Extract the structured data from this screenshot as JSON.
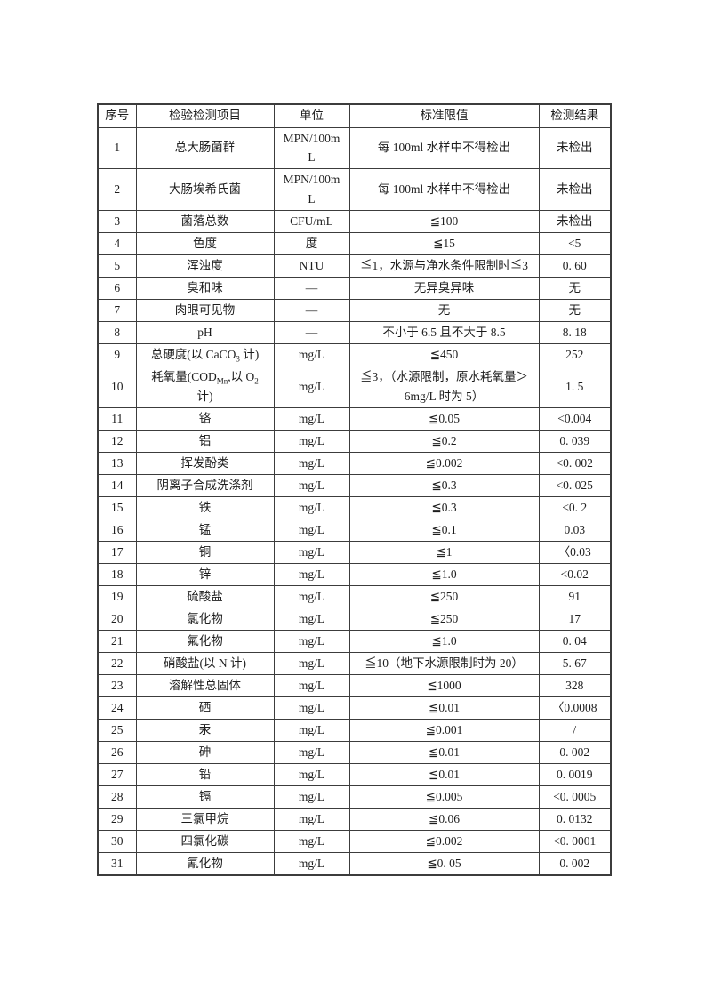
{
  "colors": {
    "page_background": "#ffffff",
    "border": "#3c3c3c",
    "text": "#1d1d1d"
  },
  "table": {
    "headers": [
      "序号",
      "检验检测项目",
      "单位",
      "标准限值",
      "检测结果"
    ],
    "rows": [
      {
        "no": "1",
        "item": "总大肠菌群",
        "unit": "MPN/100mL",
        "unit_html": "MPN/100m<br>L",
        "limit": "每 100ml 水样中不得检出",
        "result": "未检出",
        "tall": true
      },
      {
        "no": "2",
        "item": "大肠埃希氏菌",
        "unit": "MPN/100mL",
        "unit_html": "MPN/100m<br>L",
        "limit": "每 100ml 水样中不得检出",
        "result": "未检出",
        "tall": true
      },
      {
        "no": "3",
        "item": "菌落总数",
        "unit": "CFU/mL",
        "limit": "≦100",
        "result": "未检出"
      },
      {
        "no": "4",
        "item": "色度",
        "unit": "度",
        "limit": "≦15",
        "result": "<5"
      },
      {
        "no": "5",
        "item": "浑浊度",
        "unit": "NTU",
        "limit": "≦1，水源与净水条件限制时≦3",
        "result": "0. 60"
      },
      {
        "no": "6",
        "item": "臭和味",
        "unit": "—",
        "limit": "无异臭异味",
        "result": "无"
      },
      {
        "no": "7",
        "item": "肉眼可见物",
        "unit": "—",
        "limit": "无",
        "result": "无"
      },
      {
        "no": "8",
        "item": "pH",
        "unit": "—",
        "limit": "不小于 6.5 且不大于 8.5",
        "result": "8. 18"
      },
      {
        "no": "9",
        "item": "总硬度(以 CaCO3 计)",
        "item_html": "总硬度(以 CaCO<sub>3</sub> 计)",
        "unit": "mg/L",
        "limit": "≦450",
        "result": "252"
      },
      {
        "no": "10",
        "item": "耗氧量(CODMn,以 O2 计)",
        "item_html": "耗氧量(COD<sub>Mn</sub>,以 O<sub>2</sub><br>计)",
        "unit": "mg/L",
        "limit": "≦3，（水源限制，原水耗氧量＞6mg/L 时为 5）",
        "limit_html": "≦3，（水源限制，原水耗氧量＞<br>6mg/L 时为 5）",
        "result": "1. 5",
        "tall": true
      },
      {
        "no": "11",
        "item": "铬",
        "unit": "mg/L",
        "limit": "≦0.05",
        "result": "<0.004"
      },
      {
        "no": "12",
        "item": "铝",
        "unit": "mg/L",
        "limit": "≦0.2",
        "result": "0. 039"
      },
      {
        "no": "13",
        "item": "挥发酚类",
        "unit": "mg/L",
        "limit": "≦0.002",
        "result": "<0. 002"
      },
      {
        "no": "14",
        "item": "阴离子合成洗涤剂",
        "unit": "mg/L",
        "limit": "≦0.3",
        "result": "<0. 025"
      },
      {
        "no": "15",
        "item": "铁",
        "unit": "mg/L",
        "limit": "≦0.3",
        "result": "<0. 2"
      },
      {
        "no": "16",
        "item": "锰",
        "unit": "mg/L",
        "limit": "≦0.1",
        "result": "0.03"
      },
      {
        "no": "17",
        "item": "铜",
        "unit": "mg/L",
        "limit": "≦1",
        "result": "〈0.03"
      },
      {
        "no": "18",
        "item": "锌",
        "unit": "mg/L",
        "limit": "≦1.0",
        "result": "<0.02"
      },
      {
        "no": "19",
        "item": "硫酸盐",
        "unit": "mg/L",
        "limit": "≦250",
        "result": "91"
      },
      {
        "no": "20",
        "item": "氯化物",
        "unit": "mg/L",
        "limit": "≦250",
        "result": "17"
      },
      {
        "no": "21",
        "item": "氟化物",
        "unit": "mg/L",
        "limit": "≦1.0",
        "result": "0. 04"
      },
      {
        "no": "22",
        "item": "硝酸盐(以 N 计)",
        "unit": "mg/L",
        "limit": "≦10（地下水源限制时为 20）",
        "result": "5. 67"
      },
      {
        "no": "23",
        "item": "溶解性总固体",
        "unit": "mg/L",
        "limit": "≦1000",
        "result": "328"
      },
      {
        "no": "24",
        "item": "硒",
        "unit": "mg/L",
        "limit": "≦0.01",
        "result": "〈0.0008"
      },
      {
        "no": "25",
        "item": "汞",
        "unit": "mg/L",
        "limit": "≦0.001",
        "result": "/"
      },
      {
        "no": "26",
        "item": "砷",
        "unit": "mg/L",
        "limit": "≦0.01",
        "result": "0. 002"
      },
      {
        "no": "27",
        "item": "铅",
        "unit": "mg/L",
        "limit": "≦0.01",
        "result": "0. 0019"
      },
      {
        "no": "28",
        "item": "镉",
        "unit": "mg/L",
        "limit": "≦0.005",
        "result": "<0. 0005"
      },
      {
        "no": "29",
        "item": "三氯甲烷",
        "unit": "mg/L",
        "limit": "≦0.06",
        "result": "0. 0132"
      },
      {
        "no": "30",
        "item": "四氯化碳",
        "unit": "mg/L",
        "limit": "≦0.002",
        "result": "<0. 0001"
      },
      {
        "no": "31",
        "item": "氰化物",
        "unit": "mg/L",
        "limit": "≦0. 05",
        "result": "0. 002"
      }
    ]
  }
}
